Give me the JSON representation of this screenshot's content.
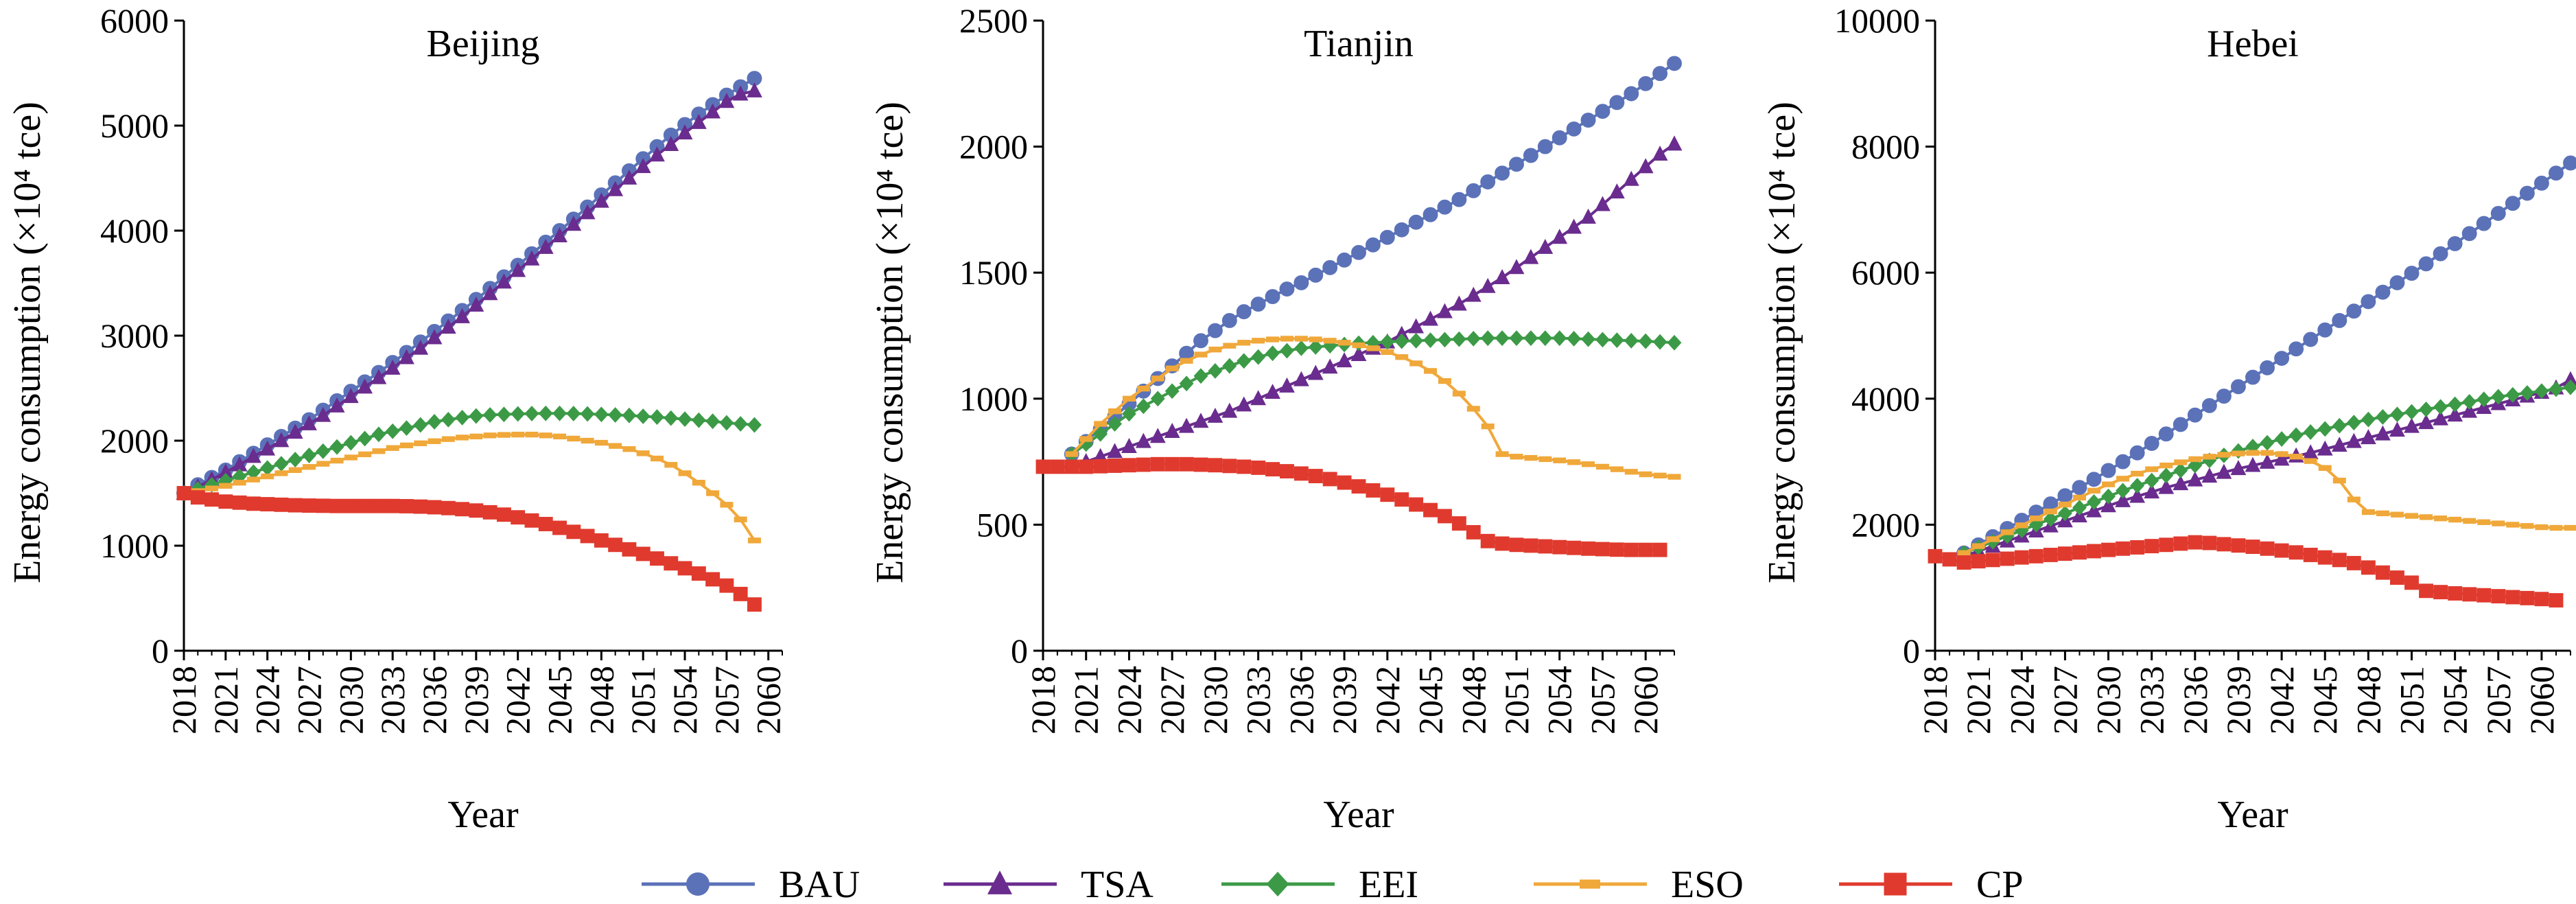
{
  "chart_data": [
    {
      "type": "line",
      "title": "Beijing",
      "xlabel": "Year",
      "ylabel": "Energy consumption (×10⁴ tce)",
      "ylim": [
        0,
        6000
      ],
      "yticks": [
        "0",
        "1000",
        "2000",
        "3000",
        "4000",
        "5000",
        "6000"
      ],
      "xlim": [
        2018,
        2061
      ],
      "xticks": [
        "2018",
        "2021",
        "2024",
        "2027",
        "2030",
        "2033",
        "2036",
        "2039",
        "2042",
        "2045",
        "2048",
        "2051",
        "2054",
        "2057",
        "2060"
      ],
      "series": [
        {
          "name": "BAU",
          "color": "#5B72B8",
          "marker": "circle",
          "start": 2018,
          "values": [
            1500,
            1580,
            1650,
            1720,
            1800,
            1880,
            1960,
            2040,
            2120,
            2200,
            2290,
            2380,
            2470,
            2560,
            2650,
            2745,
            2840,
            2940,
            3040,
            3140,
            3240,
            3345,
            3450,
            3560,
            3670,
            3780,
            3890,
            4000,
            4110,
            4225,
            4340,
            4455,
            4570,
            4685,
            4800,
            4910,
            5010,
            5110,
            5200,
            5290,
            5370,
            5450
          ]
        },
        {
          "name": "TSA",
          "color": "#6A2C8E",
          "marker": "triangle",
          "start": 2018,
          "values": [
            1500,
            1560,
            1630,
            1700,
            1770,
            1850,
            1920,
            2000,
            2080,
            2160,
            2240,
            2330,
            2420,
            2510,
            2600,
            2690,
            2790,
            2880,
            2980,
            3080,
            3180,
            3290,
            3400,
            3510,
            3620,
            3730,
            3840,
            3950,
            4060,
            4170,
            4280,
            4390,
            4500,
            4610,
            4720,
            4820,
            4930,
            5030,
            5130,
            5230,
            5300,
            5330
          ]
        },
        {
          "name": "EEI",
          "color": "#3C9A47",
          "marker": "diamond",
          "start": 2018,
          "values": [
            1500,
            1540,
            1580,
            1620,
            1660,
            1700,
            1740,
            1780,
            1820,
            1860,
            1900,
            1940,
            1980,
            2020,
            2060,
            2090,
            2120,
            2150,
            2180,
            2200,
            2220,
            2235,
            2245,
            2250,
            2255,
            2258,
            2260,
            2260,
            2258,
            2255,
            2250,
            2245,
            2240,
            2232,
            2225,
            2215,
            2205,
            2195,
            2185,
            2170,
            2160,
            2150
          ]
        },
        {
          "name": "ESO",
          "color": "#F0A83A",
          "marker": "dash",
          "start": 2018,
          "values": [
            1500,
            1520,
            1545,
            1570,
            1600,
            1630,
            1660,
            1690,
            1720,
            1750,
            1780,
            1810,
            1840,
            1870,
            1900,
            1930,
            1955,
            1975,
            1995,
            2015,
            2030,
            2040,
            2050,
            2055,
            2058,
            2058,
            2050,
            2040,
            2020,
            2000,
            1980,
            1950,
            1920,
            1880,
            1830,
            1770,
            1690,
            1600,
            1500,
            1390,
            1250,
            1050
          ]
        },
        {
          "name": "CP",
          "color": "#E03A2E",
          "marker": "square",
          "start": 2018,
          "values": [
            1500,
            1460,
            1440,
            1420,
            1410,
            1400,
            1395,
            1390,
            1385,
            1382,
            1380,
            1378,
            1378,
            1378,
            1378,
            1378,
            1376,
            1372,
            1366,
            1358,
            1348,
            1335,
            1318,
            1296,
            1270,
            1240,
            1206,
            1170,
            1132,
            1092,
            1050,
            1008,
            965,
            922,
            878,
            832,
            785,
            735,
            680,
            620,
            540,
            440
          ]
        }
      ]
    },
    {
      "type": "line",
      "title": "Tianjin",
      "xlabel": "Year",
      "ylabel": "Energy consumption (×10⁴ tce)",
      "ylim": [
        0,
        2500
      ],
      "yticks": [
        "0",
        "500",
        "1000",
        "1500",
        "2000",
        "2500"
      ],
      "xlim": [
        2018,
        2062
      ],
      "xticks": [
        "2018",
        "2021",
        "2024",
        "2027",
        "2030",
        "2033",
        "2036",
        "2039",
        "2042",
        "2045",
        "2048",
        "2051",
        "2054",
        "2057",
        "2060"
      ],
      "series": [
        {
          "name": "BAU",
          "color": "#5B72B8",
          "marker": "circle",
          "start": 2020,
          "values": [
            780,
            830,
            880,
            930,
            980,
            1030,
            1080,
            1130,
            1180,
            1230,
            1270,
            1310,
            1345,
            1375,
            1405,
            1435,
            1460,
            1490,
            1520,
            1550,
            1580,
            1610,
            1640,
            1670,
            1700,
            1730,
            1760,
            1790,
            1825,
            1860,
            1895,
            1930,
            1965,
            2000,
            2035,
            2070,
            2105,
            2140,
            2175,
            2210,
            2250,
            2290,
            2330
          ]
        },
        {
          "name": "TSA",
          "color": "#6A2C8E",
          "marker": "triangle",
          "start": 2020,
          "values": [
            730,
            750,
            770,
            790,
            810,
            830,
            850,
            870,
            890,
            910,
            930,
            950,
            975,
            1000,
            1025,
            1050,
            1075,
            1100,
            1125,
            1150,
            1175,
            1200,
            1225,
            1255,
            1285,
            1315,
            1345,
            1375,
            1410,
            1445,
            1480,
            1520,
            1560,
            1600,
            1640,
            1680,
            1720,
            1770,
            1820,
            1870,
            1920,
            1970,
            2010
          ]
        },
        {
          "name": "EEI",
          "color": "#3C9A47",
          "marker": "diamond",
          "start": 2020,
          "values": [
            780,
            820,
            860,
            900,
            940,
            970,
            1000,
            1030,
            1060,
            1090,
            1110,
            1130,
            1150,
            1165,
            1180,
            1190,
            1200,
            1205,
            1210,
            1215,
            1220,
            1222,
            1225,
            1228,
            1230,
            1232,
            1234,
            1236,
            1238,
            1240,
            1240,
            1240,
            1240,
            1240,
            1240,
            1238,
            1236,
            1234,
            1232,
            1230,
            1228,
            1225,
            1222
          ]
        },
        {
          "name": "ESO",
          "color": "#F0A83A",
          "marker": "dash",
          "start": 2020,
          "values": [
            780,
            840,
            900,
            950,
            1000,
            1040,
            1080,
            1120,
            1150,
            1175,
            1195,
            1210,
            1222,
            1230,
            1235,
            1238,
            1238,
            1235,
            1230,
            1222,
            1212,
            1200,
            1185,
            1165,
            1140,
            1110,
            1070,
            1020,
            960,
            890,
            780,
            770,
            765,
            760,
            755,
            748,
            740,
            730,
            720,
            710,
            700,
            695,
            690
          ]
        },
        {
          "name": "CP",
          "color": "#E03A2E",
          "marker": "square",
          "start": 2018,
          "values": [
            730,
            730,
            730,
            730,
            732,
            734,
            736,
            738,
            740,
            740,
            740,
            738,
            736,
            733,
            730,
            726,
            720,
            712,
            703,
            693,
            681,
            667,
            652,
            636,
            619,
            600,
            580,
            558,
            534,
            505,
            470,
            435,
            425,
            420,
            417,
            414,
            411,
            408,
            405,
            403,
            401,
            400,
            400,
            400
          ]
        }
      ]
    },
    {
      "type": "line",
      "title": "Hebei",
      "xlabel": "Year",
      "ylabel": "Energy consumption (×10⁴ tce)",
      "ylim": [
        0,
        10000
      ],
      "yticks": [
        "0",
        "2000",
        "4000",
        "6000",
        "8000",
        "10000"
      ],
      "xlim": [
        2018,
        2062
      ],
      "xticks": [
        "2018",
        "2021",
        "2024",
        "2027",
        "2030",
        "2033",
        "2036",
        "2039",
        "2042",
        "2045",
        "2048",
        "2051",
        "2054",
        "2057",
        "2060"
      ],
      "series": [
        {
          "name": "BAU",
          "color": "#5B72B8",
          "marker": "circle",
          "start": 2020,
          "values": [
            1550,
            1680,
            1810,
            1940,
            2070,
            2200,
            2330,
            2460,
            2590,
            2720,
            2860,
            3000,
            3140,
            3290,
            3440,
            3590,
            3740,
            3890,
            4040,
            4190,
            4340,
            4490,
            4640,
            4790,
            4940,
            5090,
            5240,
            5390,
            5540,
            5690,
            5840,
            5990,
            6140,
            6300,
            6460,
            6620,
            6780,
            6940,
            7100,
            7260,
            7420,
            7580,
            7740
          ]
        },
        {
          "name": "TSA",
          "color": "#6A2C8E",
          "marker": "triangle",
          "start": 2020,
          "values": [
            1500,
            1580,
            1660,
            1740,
            1820,
            1900,
            1980,
            2060,
            2140,
            2220,
            2300,
            2380,
            2450,
            2520,
            2590,
            2650,
            2710,
            2770,
            2830,
            2890,
            2940,
            2990,
            3040,
            3090,
            3140,
            3200,
            3260,
            3320,
            3380,
            3440,
            3500,
            3560,
            3620,
            3680,
            3740,
            3800,
            3860,
            3920,
            3980,
            4040,
            4100,
            4170,
            4300
          ]
        },
        {
          "name": "EEI",
          "color": "#3C9A47",
          "marker": "diamond",
          "start": 2020,
          "values": [
            1550,
            1640,
            1730,
            1820,
            1910,
            2000,
            2090,
            2180,
            2270,
            2360,
            2450,
            2540,
            2620,
            2700,
            2780,
            2860,
            2940,
            3020,
            3100,
            3170,
            3240,
            3300,
            3360,
            3420,
            3470,
            3520,
            3570,
            3620,
            3670,
            3710,
            3750,
            3790,
            3830,
            3870,
            3910,
            3950,
            3990,
            4030,
            4060,
            4090,
            4120,
            4150,
            4180
          ]
        },
        {
          "name": "ESO",
          "color": "#F0A83A",
          "marker": "dash",
          "start": 2020,
          "values": [
            1550,
            1660,
            1770,
            1880,
            1990,
            2100,
            2210,
            2320,
            2430,
            2540,
            2640,
            2730,
            2810,
            2880,
            2940,
            2990,
            3040,
            3080,
            3110,
            3130,
            3140,
            3140,
            3120,
            3080,
            3010,
            2900,
            2700,
            2400,
            2200,
            2180,
            2160,
            2140,
            2120,
            2100,
            2080,
            2060,
            2040,
            2020,
            2000,
            1980,
            1960,
            1950,
            1950
          ]
        },
        {
          "name": "CP",
          "color": "#E03A2E",
          "marker": "square",
          "start": 2018,
          "values": [
            1500,
            1450,
            1400,
            1420,
            1440,
            1460,
            1480,
            1500,
            1520,
            1540,
            1560,
            1580,
            1600,
            1620,
            1640,
            1660,
            1680,
            1700,
            1720,
            1710,
            1690,
            1670,
            1650,
            1620,
            1590,
            1560,
            1520,
            1480,
            1440,
            1390,
            1320,
            1240,
            1160,
            1080,
            950,
            930,
            910,
            895,
            880,
            865,
            850,
            835,
            820,
            800
          ]
        }
      ]
    }
  ],
  "legend": {
    "items": [
      {
        "name": "BAU",
        "color": "#5B72B8",
        "marker": "circle"
      },
      {
        "name": "TSA",
        "color": "#6A2C8E",
        "marker": "triangle"
      },
      {
        "name": "EEI",
        "color": "#3C9A47",
        "marker": "diamond"
      },
      {
        "name": "ESO",
        "color": "#F0A83A",
        "marker": "dash"
      },
      {
        "name": "CP",
        "color": "#E03A2E",
        "marker": "square"
      }
    ]
  }
}
